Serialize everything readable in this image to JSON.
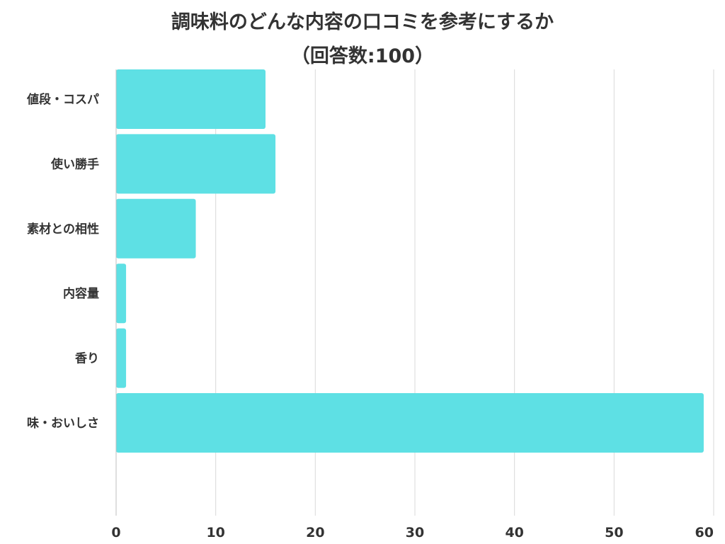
{
  "chart_data": {
    "type": "bar",
    "orientation": "horizontal",
    "title": "調味料のどんな内容の口コミを参考にするか",
    "subtitle": "（回答数:100）",
    "categories": [
      "値段・コスパ",
      "使い勝手",
      "素材との相性",
      "内容量",
      "香り",
      "味・おいしさ"
    ],
    "values": [
      15,
      16,
      8,
      1,
      1,
      59
    ],
    "xlim": [
      0,
      60
    ],
    "xticks": [
      0,
      10,
      20,
      30,
      40,
      50,
      60
    ],
    "xlabel": "",
    "ylabel": "",
    "grid": "vertical",
    "legend": "none",
    "bar_color": "#5ee0e4"
  }
}
